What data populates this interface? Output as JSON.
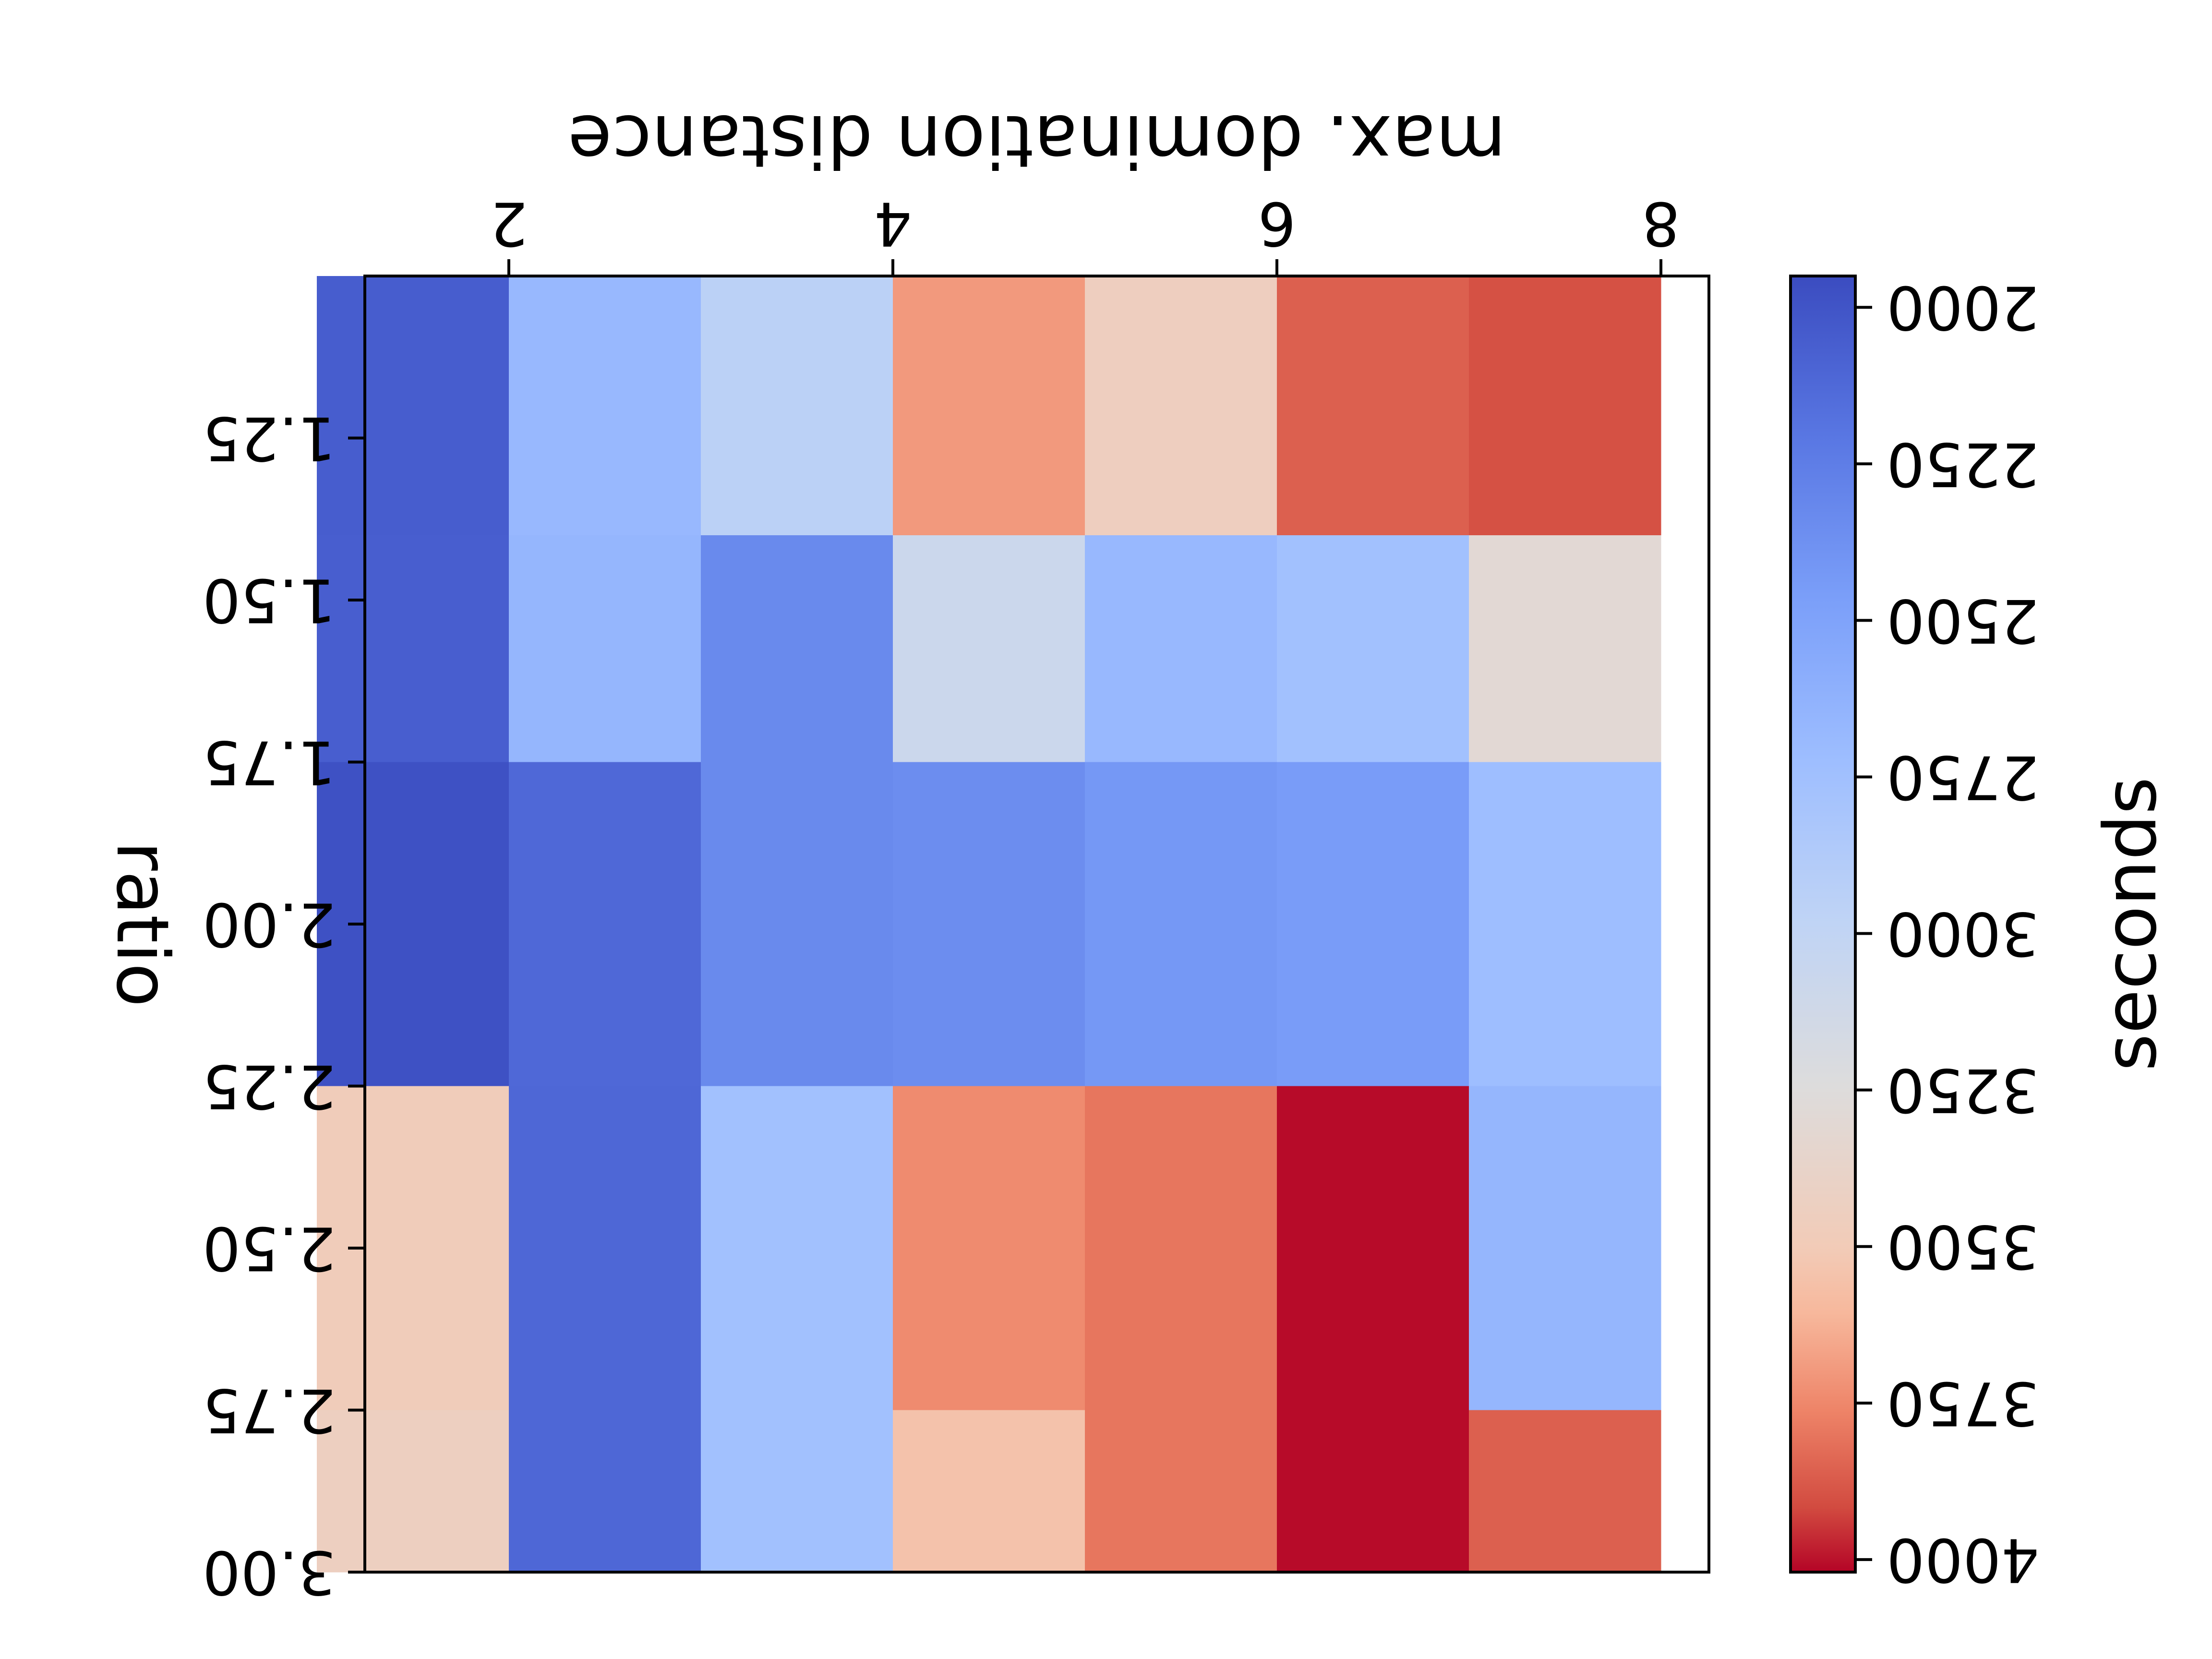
{
  "chart_data": {
    "type": "heatmap",
    "xlabel": "max. domination distance",
    "ylabel": "ratio",
    "colorbar_label": "seconds",
    "x_ticks": [
      2,
      4,
      6,
      8
    ],
    "y_ticks": [
      "1.25",
      "1.50",
      "1.75",
      "2.00",
      "2.25",
      "2.50",
      "2.75",
      "3.00"
    ],
    "colorbar_ticks": [
      "2000",
      "2250",
      "2500",
      "2750",
      "3000",
      "3250",
      "3500",
      "3750",
      "4000"
    ],
    "colormap": "coolwarm",
    "vmin": 1950,
    "vmax": 4020,
    "mirrored": true,
    "columns": [
      1.5,
      2.5,
      3.5,
      4.5,
      5.5,
      6.5,
      7.5
    ],
    "row_bands": [
      {
        "from": 1.0,
        "to": 1.4,
        "values": [
          2050,
          2680,
          2950,
          3700,
          3450,
          3860,
          3900
        ]
      },
      {
        "from": 1.4,
        "to": 1.75,
        "values": [
          2060,
          2660,
          2330,
          3080,
          2680,
          2760,
          3300
        ]
      },
      {
        "from": 1.75,
        "to": 2.25,
        "values": [
          1980,
          2120,
          2330,
          2350,
          2420,
          2450,
          2730
        ]
      },
      {
        "from": 2.25,
        "to": 2.75,
        "values": [
          3480,
          2110,
          2760,
          3740,
          3800,
          4010,
          2660
        ]
      },
      {
        "from": 2.75,
        "to": 3.0,
        "values": [
          3440,
          2110,
          2760,
          3550,
          3800,
          4010,
          3860
        ]
      }
    ]
  }
}
